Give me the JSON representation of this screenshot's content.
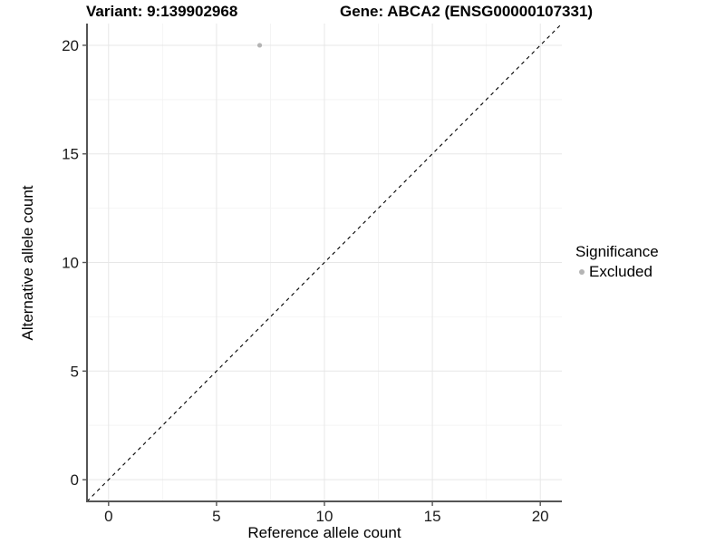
{
  "header": {
    "variant_title": "Variant: 9:139902968",
    "gene_title": "Gene: ABCA2 (ENSG00000107331)"
  },
  "axes": {
    "x_label": "Reference allele count",
    "y_label": "Alternative allele count"
  },
  "legend": {
    "title": "Significance",
    "items": [
      {
        "label": "Excluded",
        "color": "#b4b4b4",
        "marker": "dot"
      }
    ]
  },
  "chart_data": {
    "type": "scatter",
    "title": "Variant: 9:139902968    Gene: ABCA2 (ENSG00000107331)",
    "xlabel": "Reference allele count",
    "ylabel": "Alternative allele count",
    "xlim": [
      -1,
      21
    ],
    "ylim": [
      -1,
      21
    ],
    "x_ticks": [
      0,
      5,
      10,
      15,
      20
    ],
    "y_ticks": [
      0,
      5,
      10,
      15,
      20
    ],
    "x_minor_ticks": [
      2.5,
      7.5,
      12.5,
      17.5
    ],
    "y_minor_ticks": [
      2.5,
      7.5,
      12.5,
      17.5
    ],
    "grid": true,
    "legend_position": "right",
    "series": [
      {
        "name": "Excluded",
        "color": "#b4b4b4",
        "points": [
          {
            "x": 7,
            "y": 20
          }
        ]
      }
    ],
    "reference_line": {
      "description": "identity line y = x",
      "from": [
        -1,
        -1
      ],
      "to": [
        21,
        21
      ],
      "style": "dashed",
      "color": "#000000"
    }
  },
  "colors": {
    "background": "#ffffff",
    "grid_major": "#e7e7e7",
    "grid_minor": "#f4f4f4",
    "axis_line": "#555555",
    "tick_mark": "#555555",
    "tick_text": "#1a1a1a",
    "point": "#b4b4b4",
    "reference_line": "#000000"
  }
}
